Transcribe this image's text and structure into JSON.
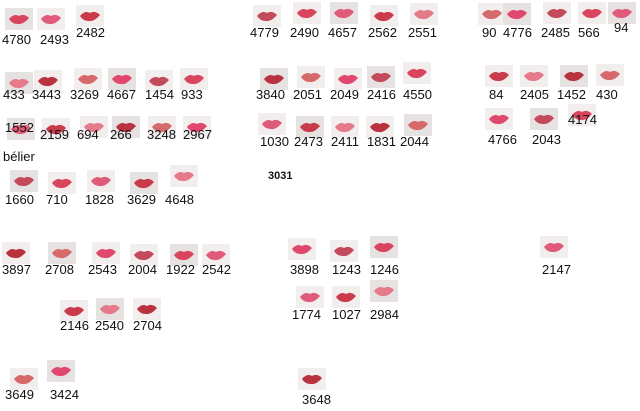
{
  "swatches": [
    {
      "label": "4780"
    },
    {
      "label": "2493"
    },
    {
      "label": "2482"
    },
    {
      "label": "433"
    },
    {
      "label": "3443"
    },
    {
      "label": "3269"
    },
    {
      "label": "4667"
    },
    {
      "label": "1454"
    },
    {
      "label": "933"
    },
    {
      "label": "1552"
    },
    {
      "label": "2159"
    },
    {
      "label": "694"
    },
    {
      "label": "266"
    },
    {
      "label": "3248"
    },
    {
      "label": "2967"
    },
    {
      "label": "1660"
    },
    {
      "label": "710"
    },
    {
      "label": "1828"
    },
    {
      "label": "3629"
    },
    {
      "label": "4648"
    },
    {
      "label": "3897"
    },
    {
      "label": "2708"
    },
    {
      "label": "2543"
    },
    {
      "label": "2004"
    },
    {
      "label": "1922"
    },
    {
      "label": "2542"
    },
    {
      "label": "2146"
    },
    {
      "label": "2540"
    },
    {
      "label": "2704"
    },
    {
      "label": "3649"
    },
    {
      "label": "3424"
    },
    {
      "label": "4779"
    },
    {
      "label": "2490"
    },
    {
      "label": "4657"
    },
    {
      "label": "2562"
    },
    {
      "label": "2551"
    },
    {
      "label": "3840"
    },
    {
      "label": "2051"
    },
    {
      "label": "2049"
    },
    {
      "label": "2416"
    },
    {
      "label": "4550"
    },
    {
      "label": "1030"
    },
    {
      "label": "2473"
    },
    {
      "label": "2411"
    },
    {
      "label": "1831"
    },
    {
      "label": "2044"
    },
    {
      "label": "3898"
    },
    {
      "label": "1243"
    },
    {
      "label": "1246"
    },
    {
      "label": "1774"
    },
    {
      "label": "1027"
    },
    {
      "label": "2984"
    },
    {
      "label": "3648"
    },
    {
      "label": "90"
    },
    {
      "label": "4776"
    },
    {
      "label": "2485"
    },
    {
      "label": "566"
    },
    {
      "label": "94"
    },
    {
      "label": "84"
    },
    {
      "label": "2405"
    },
    {
      "label": "1452"
    },
    {
      "label": "430"
    },
    {
      "label": "4766"
    },
    {
      "label": "2043"
    },
    {
      "label": "4174"
    },
    {
      "label": "2147"
    }
  ],
  "note": "bélier",
  "bold_label": "3031"
}
